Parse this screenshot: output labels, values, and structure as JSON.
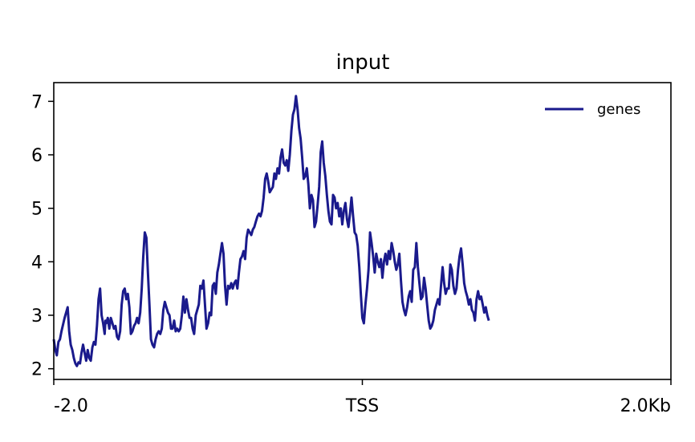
{
  "chart_data": {
    "type": "line",
    "title": "input",
    "xlabel": "",
    "ylabel": "",
    "xlim": [
      -2.0,
      2.0
    ],
    "ylim": [
      1.8,
      7.35
    ],
    "x_ticks": [
      {
        "value": -2.0,
        "label": "-2.0"
      },
      {
        "value": 0.0,
        "label": "TSS"
      },
      {
        "value": 2.0,
        "label": "2.0Kb"
      }
    ],
    "y_ticks": [
      {
        "value": 2,
        "label": "2"
      },
      {
        "value": 3,
        "label": "3"
      },
      {
        "value": 4,
        "label": "4"
      },
      {
        "value": 5,
        "label": "5"
      },
      {
        "value": 6,
        "label": "6"
      },
      {
        "value": 7,
        "label": "7"
      }
    ],
    "grid": false,
    "legend_position": "top-right",
    "series": [
      {
        "name": "genes",
        "color": "#1a1a8c",
        "points": [
          [
            -2.0,
            2.55
          ],
          [
            -1.99,
            2.35
          ],
          [
            -1.98,
            2.25
          ],
          [
            -1.97,
            2.5
          ],
          [
            -1.96,
            2.55
          ],
          [
            -1.95,
            2.7
          ],
          [
            -1.93,
            2.95
          ],
          [
            -1.91,
            3.15
          ],
          [
            -1.9,
            2.7
          ],
          [
            -1.89,
            2.45
          ],
          [
            -1.88,
            2.35
          ],
          [
            -1.87,
            2.2
          ],
          [
            -1.86,
            2.1
          ],
          [
            -1.85,
            2.05
          ],
          [
            -1.84,
            2.12
          ],
          [
            -1.83,
            2.1
          ],
          [
            -1.82,
            2.3
          ],
          [
            -1.81,
            2.45
          ],
          [
            -1.8,
            2.3
          ],
          [
            -1.79,
            2.15
          ],
          [
            -1.78,
            2.35
          ],
          [
            -1.77,
            2.2
          ],
          [
            -1.76,
            2.15
          ],
          [
            -1.75,
            2.4
          ],
          [
            -1.74,
            2.5
          ],
          [
            -1.73,
            2.45
          ],
          [
            -1.72,
            2.8
          ],
          [
            -1.71,
            3.3
          ],
          [
            -1.7,
            3.5
          ],
          [
            -1.69,
            3.0
          ],
          [
            -1.68,
            2.85
          ],
          [
            -1.67,
            2.65
          ],
          [
            -1.665,
            2.9
          ],
          [
            -1.66,
            2.85
          ],
          [
            -1.65,
            2.95
          ],
          [
            -1.64,
            2.75
          ],
          [
            -1.63,
            2.95
          ],
          [
            -1.62,
            2.85
          ],
          [
            -1.61,
            2.75
          ],
          [
            -1.6,
            2.8
          ],
          [
            -1.59,
            2.6
          ],
          [
            -1.58,
            2.55
          ],
          [
            -1.57,
            2.7
          ],
          [
            -1.56,
            3.2
          ],
          [
            -1.55,
            3.45
          ],
          [
            -1.54,
            3.5
          ],
          [
            -1.53,
            3.3
          ],
          [
            -1.52,
            3.4
          ],
          [
            -1.51,
            3.15
          ],
          [
            -1.5,
            2.65
          ],
          [
            -1.49,
            2.7
          ],
          [
            -1.48,
            2.8
          ],
          [
            -1.47,
            2.85
          ],
          [
            -1.46,
            2.95
          ],
          [
            -1.45,
            2.85
          ],
          [
            -1.44,
            3.05
          ],
          [
            -1.43,
            3.5
          ],
          [
            -1.42,
            4.1
          ],
          [
            -1.41,
            4.55
          ],
          [
            -1.4,
            4.45
          ],
          [
            -1.39,
            3.8
          ],
          [
            -1.38,
            3.2
          ],
          [
            -1.37,
            2.55
          ],
          [
            -1.36,
            2.45
          ],
          [
            -1.35,
            2.4
          ],
          [
            -1.34,
            2.55
          ],
          [
            -1.33,
            2.65
          ],
          [
            -1.32,
            2.7
          ],
          [
            -1.31,
            2.65
          ],
          [
            -1.3,
            2.75
          ],
          [
            -1.29,
            3.1
          ],
          [
            -1.28,
            3.25
          ],
          [
            -1.27,
            3.15
          ],
          [
            -1.26,
            3.05
          ],
          [
            -1.25,
            3.0
          ],
          [
            -1.24,
            2.75
          ],
          [
            -1.23,
            2.75
          ],
          [
            -1.22,
            2.9
          ],
          [
            -1.21,
            2.7
          ],
          [
            -1.2,
            2.75
          ],
          [
            -1.19,
            2.7
          ],
          [
            -1.18,
            2.75
          ],
          [
            -1.17,
            3.0
          ],
          [
            -1.16,
            3.35
          ],
          [
            -1.15,
            3.05
          ],
          [
            -1.14,
            3.3
          ],
          [
            -1.13,
            3.1
          ],
          [
            -1.12,
            2.95
          ],
          [
            -1.11,
            2.95
          ],
          [
            -1.1,
            2.75
          ],
          [
            -1.09,
            2.65
          ],
          [
            -1.08,
            3.0
          ],
          [
            -1.07,
            3.1
          ],
          [
            -1.06,
            3.2
          ],
          [
            -1.05,
            3.55
          ],
          [
            -1.04,
            3.5
          ],
          [
            -1.03,
            3.65
          ],
          [
            -1.02,
            3.2
          ],
          [
            -1.01,
            2.75
          ],
          [
            -1.0,
            2.85
          ],
          [
            -0.99,
            3.05
          ],
          [
            -0.98,
            3.0
          ],
          [
            -0.97,
            3.55
          ],
          [
            -0.96,
            3.6
          ],
          [
            -0.95,
            3.4
          ],
          [
            -0.94,
            3.8
          ],
          [
            -0.93,
            3.95
          ],
          [
            -0.92,
            4.15
          ],
          [
            -0.91,
            4.35
          ],
          [
            -0.9,
            4.15
          ],
          [
            -0.89,
            3.55
          ],
          [
            -0.88,
            3.2
          ],
          [
            -0.87,
            3.55
          ],
          [
            -0.86,
            3.5
          ],
          [
            -0.85,
            3.6
          ],
          [
            -0.84,
            3.5
          ],
          [
            -0.83,
            3.6
          ],
          [
            -0.82,
            3.65
          ],
          [
            -0.81,
            3.5
          ],
          [
            -0.8,
            3.8
          ],
          [
            -0.79,
            4.05
          ],
          [
            -0.78,
            4.1
          ],
          [
            -0.77,
            4.2
          ],
          [
            -0.76,
            4.05
          ],
          [
            -0.75,
            4.45
          ],
          [
            -0.74,
            4.6
          ],
          [
            -0.73,
            4.55
          ],
          [
            -0.72,
            4.5
          ],
          [
            -0.71,
            4.6
          ],
          [
            -0.7,
            4.65
          ],
          [
            -0.69,
            4.75
          ],
          [
            -0.68,
            4.85
          ],
          [
            -0.67,
            4.9
          ],
          [
            -0.66,
            4.85
          ],
          [
            -0.65,
            4.95
          ],
          [
            -0.64,
            5.2
          ],
          [
            -0.63,
            5.55
          ],
          [
            -0.62,
            5.65
          ],
          [
            -0.61,
            5.5
          ],
          [
            -0.6,
            5.3
          ],
          [
            -0.59,
            5.35
          ],
          [
            -0.58,
            5.4
          ],
          [
            -0.57,
            5.65
          ],
          [
            -0.56,
            5.55
          ],
          [
            -0.55,
            5.75
          ],
          [
            -0.54,
            5.65
          ],
          [
            -0.53,
            5.95
          ],
          [
            -0.52,
            6.1
          ],
          [
            -0.51,
            5.85
          ],
          [
            -0.5,
            5.8
          ],
          [
            -0.49,
            5.9
          ],
          [
            -0.48,
            5.7
          ],
          [
            -0.47,
            6.0
          ],
          [
            -0.46,
            6.45
          ],
          [
            -0.45,
            6.75
          ],
          [
            -0.44,
            6.85
          ],
          [
            -0.43,
            7.1
          ],
          [
            -0.42,
            6.85
          ],
          [
            -0.41,
            6.5
          ],
          [
            -0.4,
            6.3
          ],
          [
            -0.39,
            5.95
          ],
          [
            -0.38,
            5.55
          ],
          [
            -0.37,
            5.6
          ],
          [
            -0.36,
            5.75
          ],
          [
            -0.35,
            5.45
          ],
          [
            -0.34,
            5.0
          ],
          [
            -0.33,
            5.25
          ],
          [
            -0.32,
            5.15
          ],
          [
            -0.31,
            4.65
          ],
          [
            -0.3,
            4.75
          ],
          [
            -0.29,
            5.05
          ],
          [
            -0.28,
            5.4
          ],
          [
            -0.27,
            6.05
          ],
          [
            -0.26,
            6.25
          ],
          [
            -0.25,
            5.85
          ],
          [
            -0.24,
            5.6
          ],
          [
            -0.23,
            5.25
          ],
          [
            -0.22,
            4.95
          ],
          [
            -0.21,
            4.75
          ],
          [
            -0.2,
            4.7
          ],
          [
            -0.19,
            5.25
          ],
          [
            -0.18,
            5.2
          ],
          [
            -0.17,
            5.0
          ],
          [
            -0.16,
            5.1
          ],
          [
            -0.15,
            4.85
          ],
          [
            -0.14,
            5.0
          ],
          [
            -0.13,
            4.7
          ],
          [
            -0.12,
            4.95
          ],
          [
            -0.11,
            5.1
          ],
          [
            -0.1,
            4.8
          ],
          [
            -0.09,
            4.65
          ],
          [
            -0.08,
            4.9
          ],
          [
            -0.07,
            5.2
          ],
          [
            -0.06,
            4.85
          ],
          [
            -0.05,
            4.55
          ],
          [
            -0.04,
            4.5
          ],
          [
            -0.03,
            4.3
          ],
          [
            -0.02,
            3.9
          ],
          [
            -0.01,
            3.4
          ],
          [
            0.0,
            2.95
          ],
          [
            0.01,
            2.85
          ],
          [
            0.02,
            3.2
          ],
          [
            0.03,
            3.5
          ],
          [
            0.04,
            3.85
          ],
          [
            0.05,
            4.55
          ],
          [
            0.06,
            4.35
          ],
          [
            0.07,
            4.1
          ],
          [
            0.08,
            3.8
          ],
          [
            0.09,
            4.15
          ],
          [
            0.1,
            4.0
          ],
          [
            0.11,
            3.9
          ],
          [
            0.12,
            4.05
          ],
          [
            0.13,
            3.7
          ],
          [
            0.14,
            4.0
          ],
          [
            0.15,
            4.15
          ],
          [
            0.16,
            3.95
          ],
          [
            0.17,
            4.2
          ],
          [
            0.18,
            4.05
          ],
          [
            0.19,
            4.35
          ],
          [
            0.2,
            4.2
          ],
          [
            0.21,
            4.0
          ],
          [
            0.22,
            3.85
          ],
          [
            0.23,
            3.95
          ],
          [
            0.24,
            4.15
          ],
          [
            0.25,
            3.65
          ],
          [
            0.26,
            3.25
          ],
          [
            0.27,
            3.1
          ],
          [
            0.28,
            3.0
          ],
          [
            0.29,
            3.15
          ],
          [
            0.3,
            3.35
          ],
          [
            0.31,
            3.45
          ],
          [
            0.32,
            3.25
          ],
          [
            0.33,
            3.85
          ],
          [
            0.34,
            3.9
          ],
          [
            0.35,
            4.35
          ],
          [
            0.36,
            3.9
          ],
          [
            0.37,
            3.6
          ],
          [
            0.38,
            3.3
          ],
          [
            0.39,
            3.35
          ],
          [
            0.4,
            3.7
          ],
          [
            0.41,
            3.5
          ],
          [
            0.42,
            3.2
          ],
          [
            0.43,
            2.9
          ],
          [
            0.44,
            2.75
          ],
          [
            0.45,
            2.8
          ],
          [
            0.46,
            2.9
          ],
          [
            0.47,
            3.1
          ],
          [
            0.48,
            3.2
          ],
          [
            0.49,
            3.3
          ],
          [
            0.5,
            3.2
          ],
          [
            0.51,
            3.55
          ],
          [
            0.52,
            3.9
          ],
          [
            0.53,
            3.6
          ],
          [
            0.54,
            3.4
          ],
          [
            0.55,
            3.5
          ],
          [
            0.56,
            3.5
          ],
          [
            0.57,
            3.95
          ],
          [
            0.58,
            3.85
          ],
          [
            0.59,
            3.55
          ],
          [
            0.6,
            3.4
          ],
          [
            0.61,
            3.5
          ],
          [
            0.62,
            3.85
          ],
          [
            0.63,
            4.1
          ],
          [
            0.64,
            4.25
          ],
          [
            0.65,
            3.95
          ],
          [
            0.66,
            3.6
          ],
          [
            0.67,
            3.45
          ],
          [
            0.68,
            3.35
          ],
          [
            0.69,
            3.2
          ],
          [
            0.7,
            3.3
          ],
          [
            0.71,
            3.1
          ],
          [
            0.72,
            3.05
          ],
          [
            0.73,
            2.9
          ],
          [
            0.74,
            3.3
          ],
          [
            0.75,
            3.45
          ],
          [
            0.76,
            3.3
          ],
          [
            0.77,
            3.35
          ],
          [
            0.78,
            3.2
          ],
          [
            0.79,
            3.05
          ],
          [
            0.8,
            3.15
          ],
          [
            0.81,
            3.0
          ],
          [
            0.82,
            2.9
          ]
        ]
      }
    ]
  }
}
